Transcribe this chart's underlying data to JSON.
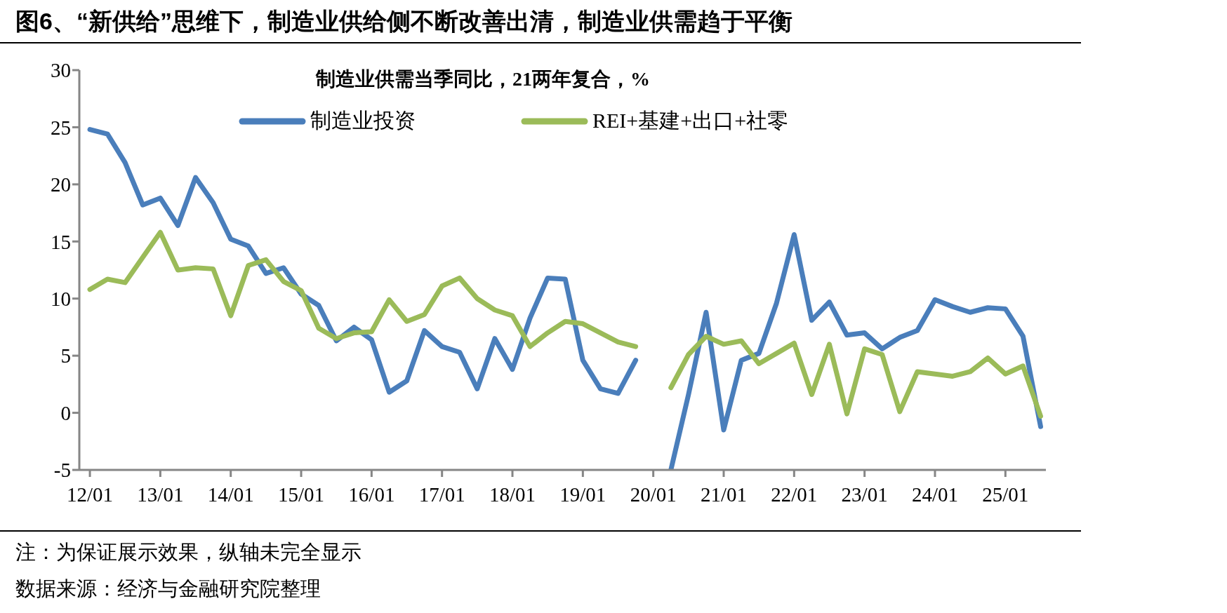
{
  "chart_data": {
    "type": "line",
    "title": "图6、“新供给”思维下，制造业供给侧不断改善出清，制造业供需趋于平衡",
    "subtitle": "制造业供需当季同比，21两年复合，%",
    "categories": [
      "12/01",
      null,
      null,
      null,
      "13/01",
      null,
      null,
      null,
      "14/01",
      null,
      null,
      null,
      "15/01",
      null,
      null,
      null,
      "16/01",
      null,
      null,
      null,
      "17/01",
      null,
      null,
      null,
      "18/01",
      null,
      null,
      null,
      "19/01",
      null,
      null,
      null,
      "20/01",
      null,
      null,
      null,
      "21/01",
      null,
      null,
      null,
      "22/01",
      null,
      null,
      null,
      "23/01",
      null,
      null,
      null,
      "24/01",
      null,
      null,
      null,
      "25/01",
      null,
      null
    ],
    "series": [
      {
        "name": "制造业投资",
        "color": "#4a7ebb",
        "values": [
          24.8,
          24.4,
          21.9,
          18.2,
          18.8,
          16.4,
          20.6,
          18.4,
          15.2,
          14.6,
          12.2,
          12.7,
          10.4,
          9.4,
          6.3,
          7.5,
          6.4,
          1.8,
          2.8,
          7.2,
          5.8,
          5.3,
          2.1,
          6.5,
          3.8,
          8.3,
          11.8,
          11.7,
          4.6,
          2.1,
          1.7,
          4.6,
          null,
          -5,
          1.6,
          8.8,
          -1.5,
          4.6,
          5.2,
          9.6,
          15.6,
          8.1,
          9.7,
          6.8,
          7.0,
          5.6,
          6.6,
          7.2,
          9.9,
          9.3,
          8.8,
          9.2,
          9.1,
          6.7,
          -1.2
        ]
      },
      {
        "name": "REI+基建+出口+社零",
        "color": "#9bbb59",
        "values": [
          10.8,
          11.7,
          11.4,
          13.6,
          15.8,
          12.5,
          12.7,
          12.6,
          8.5,
          12.9,
          13.4,
          11.5,
          10.7,
          7.4,
          6.5,
          7.0,
          7.1,
          9.9,
          8.0,
          8.6,
          11.1,
          11.8,
          10.0,
          9.0,
          8.5,
          5.8,
          7.0,
          8.0,
          7.8,
          7.0,
          6.2,
          5.8,
          null,
          2.2,
          5.1,
          6.7,
          6.0,
          6.3,
          4.3,
          5.2,
          6.1,
          1.6,
          6.0,
          -0.1,
          5.6,
          5.1,
          0.1,
          3.6,
          3.4,
          3.2,
          3.6,
          4.8,
          3.4,
          4.1,
          -0.3
        ]
      }
    ],
    "ylim": [
      -5,
      30
    ],
    "yticks": [
      -5,
      0,
      5,
      10,
      15,
      20,
      25,
      30
    ],
    "grid": false,
    "legend": "top",
    "marker": "none",
    "line_style": "solid",
    "annotations": [
      "注：为保证展示效果，纵轴未完全显示",
      "数据来源：经济与金融研究院整理"
    ]
  }
}
